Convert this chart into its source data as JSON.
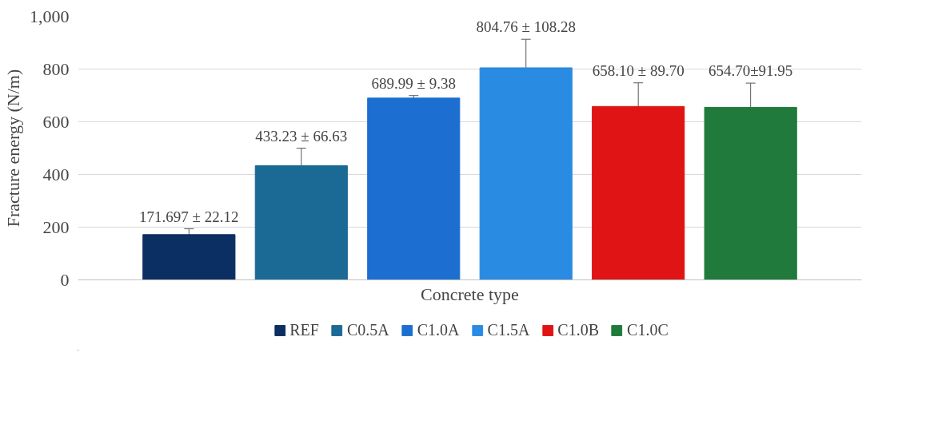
{
  "chart_data": {
    "type": "bar",
    "xlabel": "Concrete type",
    "ylabel": "Fracture energy (N/m)",
    "categories": [
      null
    ],
    "series": [
      {
        "name": "REF",
        "color": "#0b2e63",
        "values": [
          171.697
        ],
        "errors": [
          22.12
        ],
        "value_labels": [
          "171.697 ± 22.12"
        ]
      },
      {
        "name": "C0.5A",
        "color": "#1b6a96",
        "values": [
          433.23
        ],
        "errors": [
          66.63
        ],
        "value_labels": [
          "433.23 ± 66.63"
        ]
      },
      {
        "name": "C1.0A",
        "color": "#1c6fd0",
        "values": [
          689.99
        ],
        "errors": [
          9.38
        ],
        "value_labels": [
          "689.99 ± 9.38"
        ]
      },
      {
        "name": "C1.5A",
        "color": "#2a8be3",
        "values": [
          804.76
        ],
        "errors": [
          108.28
        ],
        "value_labels": [
          "804.76 ± 108.28"
        ]
      },
      {
        "name": "C1.0B",
        "color": "#e01414",
        "values": [
          658.1
        ],
        "errors": [
          89.7
        ],
        "value_labels": [
          "658.10 ± 89.70"
        ]
      },
      {
        "name": "C1.0C",
        "color": "#1f7a3c",
        "values": [
          654.7
        ],
        "errors": [
          91.95
        ],
        "value_labels": [
          "654.70±91.95"
        ]
      }
    ],
    "ylim": [
      0,
      1000
    ],
    "yticks": [
      0,
      200,
      400,
      600,
      800,
      {
        "value": 1000,
        "label": "1,000"
      }
    ],
    "grid": "y",
    "legend": "bottom"
  }
}
